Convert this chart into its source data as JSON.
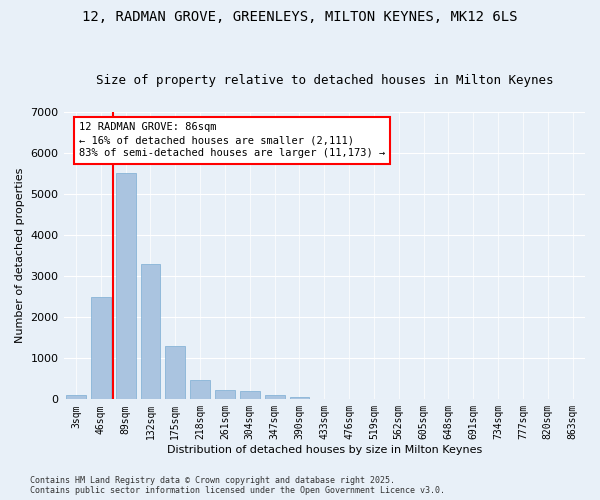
{
  "title_line1": "12, RADMAN GROVE, GREENLEYS, MILTON KEYNES, MK12 6LS",
  "title_line2": "Size of property relative to detached houses in Milton Keynes",
  "xlabel": "Distribution of detached houses by size in Milton Keynes",
  "ylabel": "Number of detached properties",
  "categories": [
    "3sqm",
    "46sqm",
    "89sqm",
    "132sqm",
    "175sqm",
    "218sqm",
    "261sqm",
    "304sqm",
    "347sqm",
    "390sqm",
    "433sqm",
    "476sqm",
    "519sqm",
    "562sqm",
    "605sqm",
    "648sqm",
    "691sqm",
    "734sqm",
    "777sqm",
    "820sqm",
    "863sqm"
  ],
  "values": [
    100,
    2500,
    5500,
    3300,
    1300,
    480,
    220,
    210,
    100,
    55,
    0,
    0,
    0,
    0,
    0,
    0,
    0,
    0,
    0,
    0,
    0
  ],
  "bar_color": "#aac4e0",
  "bar_edge_color": "#7badd4",
  "vline_color": "red",
  "vline_x": 1.5,
  "ylim": [
    0,
    7000
  ],
  "yticks": [
    0,
    1000,
    2000,
    3000,
    4000,
    5000,
    6000,
    7000
  ],
  "annotation_text": "12 RADMAN GROVE: 86sqm\n← 16% of detached houses are smaller (2,111)\n83% of semi-detached houses are larger (11,173) →",
  "annotation_box_color": "white",
  "annotation_box_edge_color": "red",
  "footer_text": "Contains HM Land Registry data © Crown copyright and database right 2025.\nContains public sector information licensed under the Open Government Licence v3.0.",
  "bg_color": "#e8f0f8",
  "plot_bg_color": "#e8f0f8",
  "grid_color": "white",
  "title_fontsize": 10,
  "subtitle_fontsize": 9,
  "tick_fontsize": 7,
  "label_fontsize": 8,
  "annot_fontsize": 7.5
}
